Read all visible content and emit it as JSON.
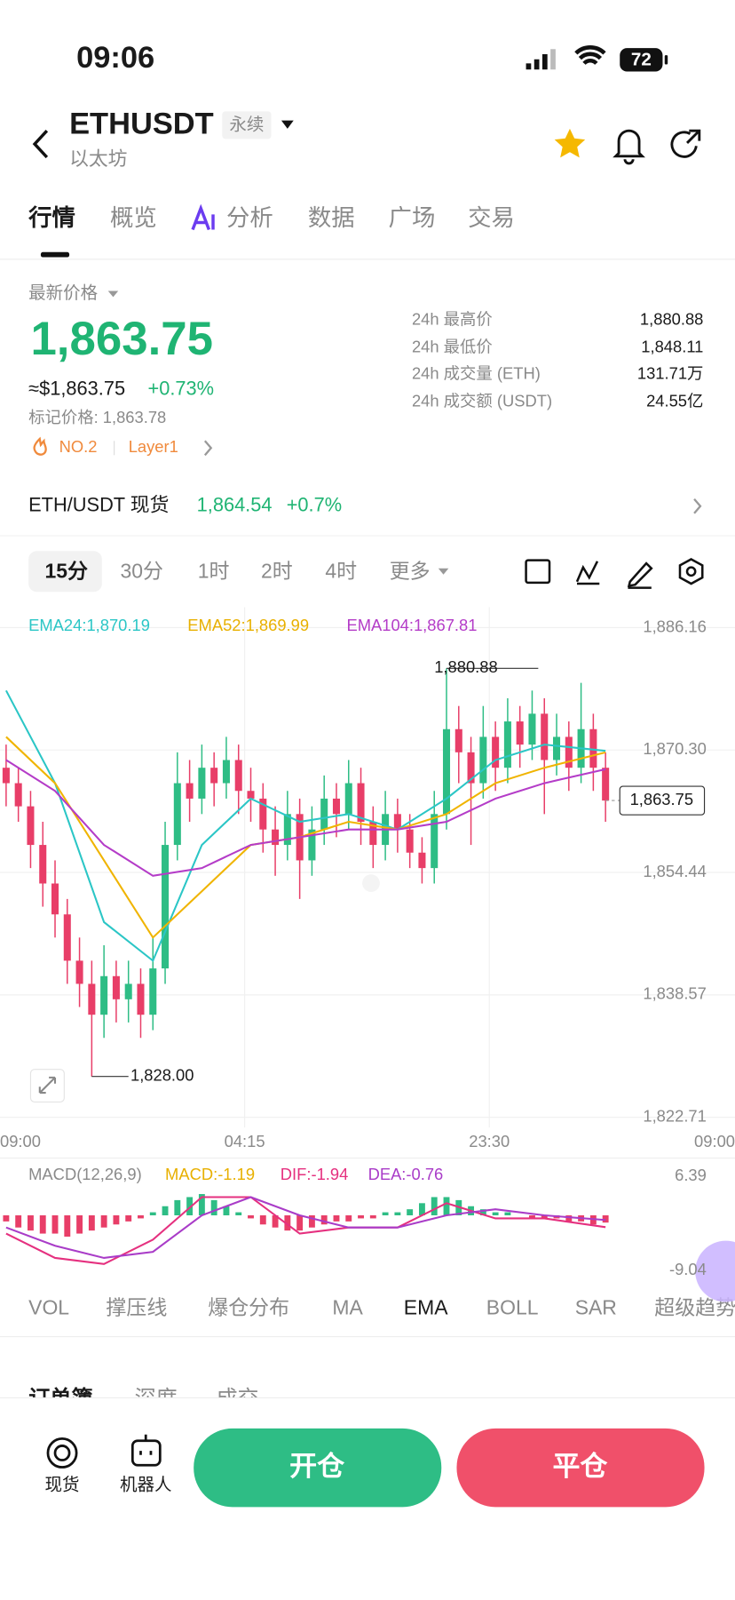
{
  "status_bar": {
    "time": "09:06",
    "battery": "72"
  },
  "header": {
    "symbol": "ETHUSDT",
    "tag": "永续",
    "name": "以太坊"
  },
  "tabs": [
    "行情",
    "概览",
    "分析",
    "数据",
    "广场",
    "交易"
  ],
  "price": {
    "label": "最新价格",
    "last": "1,863.75",
    "usd": "≈$1,863.75",
    "change": "+0.73%",
    "mark": "标记价格: 1,863.78",
    "rank": "NO.2",
    "sector": "Layer1"
  },
  "stats": [
    {
      "label": "24h 最高价",
      "value": "1,880.88"
    },
    {
      "label": "24h 最低价",
      "value": "1,848.11"
    },
    {
      "label": "24h 成交量 (ETH)",
      "value": "131.71万"
    },
    {
      "label": "24h 成交额 (USDT)",
      "value": "24.55亿"
    }
  ],
  "spot": {
    "label": "ETH/USDT 现货",
    "price": "1,864.54",
    "change": "+0.7%"
  },
  "intervals": [
    "15分",
    "30分",
    "1时",
    "2时",
    "4时",
    "更多"
  ],
  "chart_data": [
    {
      "type": "candlestick",
      "open": [
        1868,
        1866,
        1863,
        1858,
        1853,
        1849,
        1843,
        1840,
        1836,
        1841,
        1838,
        1840,
        1836,
        1842,
        1858,
        1866,
        1864,
        1868,
        1866,
        1869,
        1865,
        1864,
        1860,
        1858,
        1862,
        1856,
        1860,
        1864,
        1862,
        1866,
        1861,
        1858,
        1862,
        1860,
        1857,
        1855,
        1862,
        1873,
        1870,
        1866,
        1872,
        1868,
        1874,
        1871,
        1875,
        1869,
        1872,
        1868,
        1873,
        1868
      ],
      "high": [
        1871,
        1868,
        1865,
        1861,
        1856,
        1851,
        1846,
        1843,
        1845,
        1843,
        1843,
        1842,
        1846,
        1861,
        1870,
        1869,
        1871,
        1870,
        1872,
        1871,
        1868,
        1866,
        1863,
        1865,
        1864,
        1863,
        1867,
        1866,
        1869,
        1868,
        1863,
        1865,
        1864,
        1862,
        1859,
        1865,
        1880.88,
        1876,
        1872,
        1876,
        1874,
        1877,
        1876,
        1878,
        1877,
        1875,
        1874,
        1879,
        1875,
        1870
      ],
      "low": [
        1863,
        1861,
        1855,
        1850,
        1846,
        1840,
        1837,
        1828,
        1833,
        1835,
        1835,
        1833,
        1834,
        1840,
        1856,
        1861,
        1862,
        1863,
        1864,
        1862,
        1861,
        1857,
        1854,
        1856,
        1851,
        1854,
        1858,
        1859,
        1860,
        1858,
        1855,
        1856,
        1857,
        1855,
        1853,
        1853,
        1860,
        1866,
        1858,
        1864,
        1865,
        1866,
        1868,
        1869,
        1862,
        1867,
        1865,
        1866,
        1865,
        1861
      ],
      "close": [
        1866,
        1863,
        1858,
        1853,
        1849,
        1843,
        1840,
        1836,
        1841,
        1838,
        1840,
        1836,
        1842,
        1858,
        1866,
        1864,
        1868,
        1866,
        1869,
        1865,
        1864,
        1860,
        1858,
        1862,
        1856,
        1860,
        1864,
        1862,
        1866,
        1861,
        1858,
        1862,
        1860,
        1857,
        1855,
        1862,
        1873,
        1870,
        1866,
        1872,
        1868,
        1874,
        1871,
        1875,
        1869,
        1872,
        1868,
        1873,
        1868,
        1863.75
      ],
      "up_color": "#2ebd85",
      "down_color": "#e83e68",
      "ylim": [
        1822.71,
        1886.16
      ],
      "yticks": [
        {
          "value": 1886.16,
          "label": "1,886.16"
        },
        {
          "value": 1870.3,
          "label": "1,870.30"
        },
        {
          "value": 1854.44,
          "label": "1,854.44"
        },
        {
          "value": 1838.57,
          "label": "1,838.57"
        },
        {
          "value": 1822.71,
          "label": "1,822.71"
        }
      ],
      "x_labels": [
        "09:00",
        "04:15",
        "23:30",
        "09:00"
      ],
      "last_price": {
        "value": 1863.75,
        "label": "1,863.75"
      },
      "max_label": "1,880.88",
      "min_label": "1,828.00",
      "ema_index": [
        0,
        4,
        8,
        12,
        16,
        20,
        24,
        28,
        32,
        36,
        40,
        44,
        49
      ],
      "series": [
        {
          "name": "EMA24",
          "legend": "EMA24:1,870.19",
          "color": "#2bc6c6",
          "values": [
            1878,
            1866,
            1848,
            1843,
            1858,
            1864,
            1861,
            1862,
            1860,
            1864,
            1869,
            1871,
            1870.19
          ]
        },
        {
          "name": "EMA52",
          "legend": "EMA52:1,869.99",
          "color": "#f0b400",
          "values": [
            1872,
            1866,
            1856,
            1846,
            1852,
            1858,
            1859,
            1861,
            1860,
            1862,
            1866,
            1868,
            1869.99
          ]
        },
        {
          "name": "EMA104",
          "legend": "EMA104:1,867.81",
          "color": "#b43cc8",
          "values": [
            1869,
            1865,
            1858,
            1854,
            1855,
            1858,
            1859,
            1860,
            1860,
            1861,
            1864,
            1866,
            1867.81
          ]
        }
      ]
    },
    {
      "type": "macd",
      "title": "MACD(12,26,9)",
      "histogram": [
        -1,
        -2,
        -2.5,
        -3,
        -3,
        -3.5,
        -3,
        -2.5,
        -2,
        -1.5,
        -1,
        -0.5,
        0.5,
        1.5,
        2.5,
        3,
        3.5,
        2.5,
        1.5,
        0.5,
        -0.5,
        -1.5,
        -2,
        -2.5,
        -2.5,
        -2,
        -1.5,
        -1,
        -1,
        -0.5,
        -0.5,
        0.5,
        0.5,
        1,
        2,
        3,
        3,
        2.5,
        1.5,
        1,
        0.5,
        0.5,
        0,
        -0.5,
        -0.5,
        -0.5,
        -1,
        -1,
        -1.5,
        -1.19
      ],
      "ylim": [
        -9.04,
        6.39
      ],
      "yticks": [
        6.39,
        -9.04
      ],
      "line_index": [
        0,
        4,
        8,
        12,
        16,
        20,
        24,
        28,
        32,
        36,
        40,
        44,
        49
      ],
      "series": [
        {
          "name": "MACD",
          "legend": "MACD:-1.19",
          "color": "#f0b400"
        },
        {
          "name": "DIF",
          "legend": "DIF:-1.94",
          "color": "#e5307f",
          "values": [
            -3,
            -7,
            -8,
            -4,
            3,
            3,
            -3,
            -2,
            -2,
            2,
            -0.5,
            -0.5,
            -1.94
          ]
        },
        {
          "name": "DEA",
          "legend": "DEA:-0.76",
          "color": "#a93cc8",
          "values": [
            -2,
            -5,
            -7,
            -6,
            0,
            3,
            0,
            -2,
            -2,
            0,
            1,
            0,
            -0.76
          ]
        }
      ]
    }
  ],
  "indicators": [
    "VOL",
    "撑压线",
    "爆仓分布",
    "MA",
    "EMA",
    "BOLL",
    "SAR",
    "超级趋势"
  ],
  "book_tabs": [
    "订单簿",
    "深度",
    "成交"
  ],
  "bottom": {
    "actions": [
      "现货",
      "机器人"
    ],
    "buttons": [
      "开仓",
      "平仓"
    ]
  }
}
